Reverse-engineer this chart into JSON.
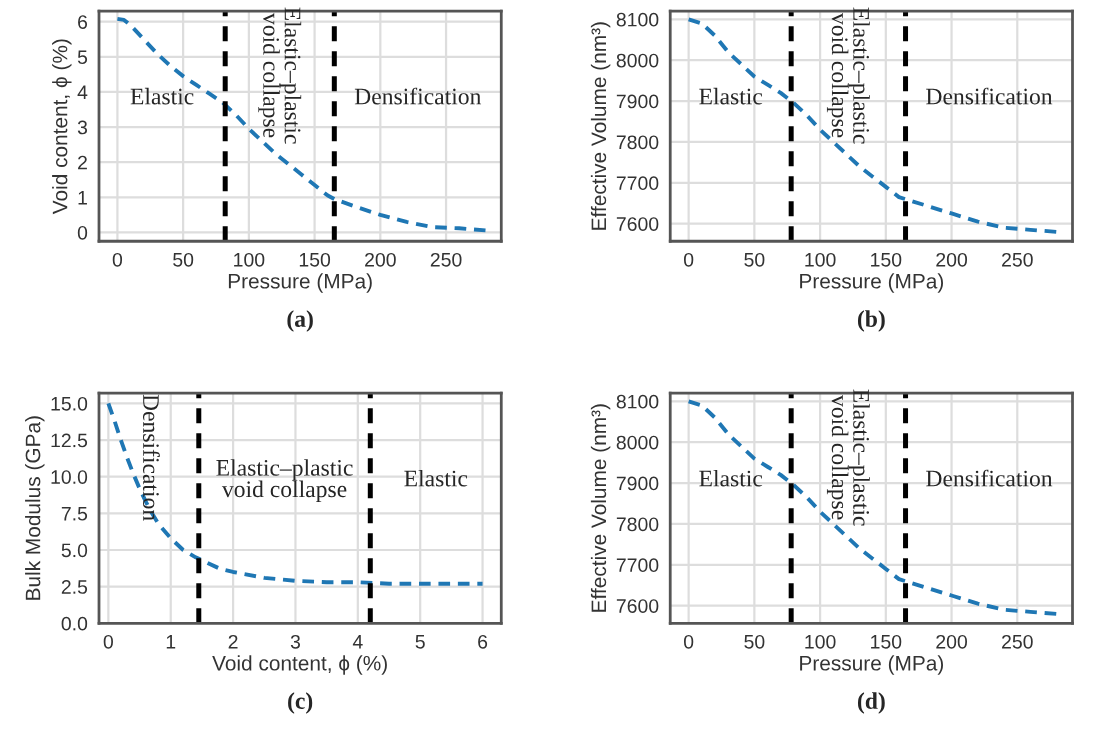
{
  "chart_data": [
    {
      "type": "line",
      "xlabel": "Pressure (MPa)",
      "ylabel": "Void content, ϕ (%)",
      "x": [
        0,
        5,
        10,
        20,
        30,
        40,
        50,
        60,
        70,
        80,
        90,
        100,
        110,
        120,
        130,
        140,
        150,
        160,
        165,
        180,
        200,
        220,
        240,
        260,
        280
      ],
      "series": [
        {
          "color": "#1f77b4",
          "values": [
            6.08,
            6.05,
            5.9,
            5.5,
            5.1,
            4.75,
            4.45,
            4.2,
            3.95,
            3.7,
            3.35,
            2.95,
            2.6,
            2.25,
            1.95,
            1.65,
            1.35,
            1.05,
            0.95,
            0.75,
            0.5,
            0.3,
            0.15,
            0.12,
            0.06
          ]
        }
      ],
      "xlim": [
        -14,
        292
      ],
      "ylim": [
        -0.25,
        6.3
      ],
      "xticks": [
        0,
        50,
        100,
        150,
        200,
        250
      ],
      "yticks": [
        0,
        1,
        2,
        3,
        4,
        5,
        6
      ],
      "grid": true,
      "line_style": "dashed",
      "ref_lines": [
        {
          "axis": "x",
          "value": 82,
          "color": "#000000",
          "line_style": "dashed"
        },
        {
          "axis": "x",
          "value": 165,
          "color": "#000000",
          "line_style": "dashed"
        }
      ],
      "annotations": [
        "Elastic",
        "Elastic–plastic\nvoid collapse",
        "Densification",
        "(a)"
      ]
    },
    {
      "type": "line",
      "xlabel": "Pressure (MPa)",
      "ylabel": "Effective Volume (nm³)",
      "x": [
        0,
        10,
        20,
        30,
        40,
        50,
        60,
        70,
        80,
        90,
        100,
        110,
        120,
        130,
        140,
        150,
        160,
        165,
        180,
        200,
        220,
        240,
        260,
        280
      ],
      "series": [
        {
          "color": "#1f77b4",
          "values": [
            8100,
            8090,
            8060,
            8020,
            7990,
            7960,
            7940,
            7920,
            7895,
            7865,
            7830,
            7800,
            7770,
            7740,
            7715,
            7690,
            7665,
            7660,
            7645,
            7625,
            7605,
            7590,
            7585,
            7580
          ]
        }
      ],
      "xlim": [
        -14,
        292
      ],
      "ylim": [
        7557,
        8120
      ],
      "xticks": [
        0,
        50,
        100,
        150,
        200,
        250
      ],
      "yticks": [
        7600,
        7700,
        7800,
        7900,
        8000,
        8100
      ],
      "grid": true,
      "line_style": "dashed",
      "ref_lines": [
        {
          "axis": "x",
          "value": 78,
          "color": "#000000",
          "line_style": "dashed"
        },
        {
          "axis": "x",
          "value": 165,
          "color": "#000000",
          "line_style": "dashed"
        }
      ],
      "annotations": [
        "Elastic",
        "Elastic–plastic\nvoid collapse",
        "Densification",
        "(b)"
      ]
    },
    {
      "type": "line",
      "xlabel": "Void content, ϕ (%)",
      "ylabel": "Bulk Modulus (GPa)",
      "x": [
        0,
        0.1,
        0.2,
        0.3,
        0.4,
        0.5,
        0.6,
        0.7,
        0.8,
        1.0,
        1.2,
        1.4,
        1.6,
        1.8,
        2.0,
        2.5,
        3.0,
        3.5,
        4.0,
        4.5,
        5.0,
        6.0
      ],
      "series": [
        {
          "color": "#1f77b4",
          "values": [
            15.0,
            13.8,
            12.5,
            11.3,
            10.2,
            9.2,
            8.3,
            7.5,
            6.8,
            5.8,
            5.0,
            4.5,
            4.1,
            3.7,
            3.5,
            3.1,
            2.9,
            2.8,
            2.8,
            2.7,
            2.7,
            2.7
          ]
        }
      ],
      "xlim": [
        -0.15,
        6.3
      ],
      "ylim": [
        0,
        15.7
      ],
      "xticks": [
        0,
        1,
        2,
        3,
        4,
        5,
        6
      ],
      "yticks": [
        {
          "value": 0,
          "label": "0.0"
        },
        {
          "value": 2.5,
          "label": "2.5"
        },
        {
          "value": 5,
          "label": "5.0"
        },
        {
          "value": 7.5,
          "label": "7.5"
        },
        {
          "value": 10,
          "label": "10.0"
        },
        {
          "value": 12.5,
          "label": "12.5"
        },
        {
          "value": 15,
          "label": "15.0"
        }
      ],
      "grid": true,
      "line_style": "dashed",
      "ref_lines": [
        {
          "axis": "x",
          "value": 1.45,
          "color": "#000000",
          "line_style": "dashed"
        },
        {
          "axis": "x",
          "value": 4.2,
          "color": "#000000",
          "line_style": "dashed"
        }
      ],
      "annotations": [
        "Densification",
        "Elastic–plastic\nvoid collapse",
        "Elastic",
        "(c)"
      ]
    },
    {
      "type": "line",
      "xlabel": "Pressure (MPa)",
      "ylabel": "Effective Volume (nm³)",
      "x": [
        0,
        10,
        20,
        30,
        40,
        50,
        60,
        70,
        80,
        90,
        100,
        110,
        120,
        130,
        140,
        150,
        160,
        165,
        180,
        200,
        220,
        240,
        260,
        280
      ],
      "series": [
        {
          "color": "#1f77b4",
          "values": [
            8100,
            8090,
            8060,
            8020,
            7990,
            7960,
            7940,
            7920,
            7895,
            7865,
            7830,
            7800,
            7770,
            7740,
            7715,
            7690,
            7665,
            7660,
            7645,
            7625,
            7605,
            7590,
            7585,
            7580
          ]
        }
      ],
      "xlim": [
        -14,
        292
      ],
      "ylim": [
        7557,
        8120
      ],
      "xticks": [
        0,
        50,
        100,
        150,
        200,
        250
      ],
      "yticks": [
        7600,
        7700,
        7800,
        7900,
        8000,
        8100
      ],
      "grid": true,
      "line_style": "dashed",
      "ref_lines": [
        {
          "axis": "x",
          "value": 78,
          "color": "#000000",
          "line_style": "dashed"
        },
        {
          "axis": "x",
          "value": 165,
          "color": "#000000",
          "line_style": "dashed"
        }
      ],
      "annotations": [
        "Elastic",
        "Elastic–plastic\nvoid collapse",
        "Densification",
        "(d)"
      ]
    }
  ]
}
